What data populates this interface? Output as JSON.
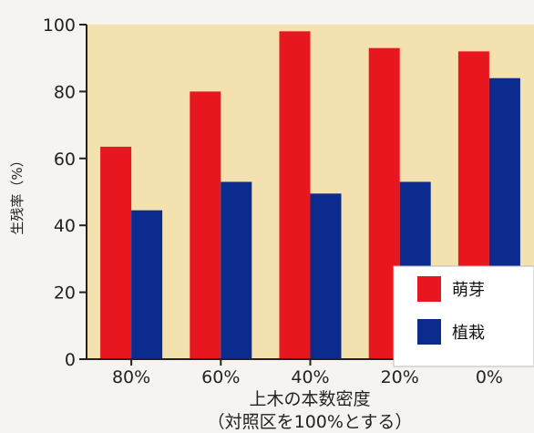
{
  "chart_data": {
    "type": "bar",
    "categories": [
      "80%",
      "60%",
      "40%",
      "20%",
      "0%"
    ],
    "series": [
      {
        "name": "萌芽",
        "values": [
          63.5,
          80,
          98,
          93,
          92
        ],
        "color": "#e8161e"
      },
      {
        "name": "植栽",
        "values": [
          44.5,
          53,
          49.5,
          53,
          84
        ],
        "color": "#0c2b8f"
      }
    ],
    "ylabel": "生残率（%）",
    "xlabel": "上木の本数密度",
    "xlabel2": "（対照区を100%とする）",
    "ylim": [
      0,
      100
    ],
    "yticks": [
      0,
      20,
      40,
      60,
      80,
      100
    ],
    "grid": false,
    "legend_position": "bottom-right",
    "plot_background": "#f3e2b0"
  }
}
